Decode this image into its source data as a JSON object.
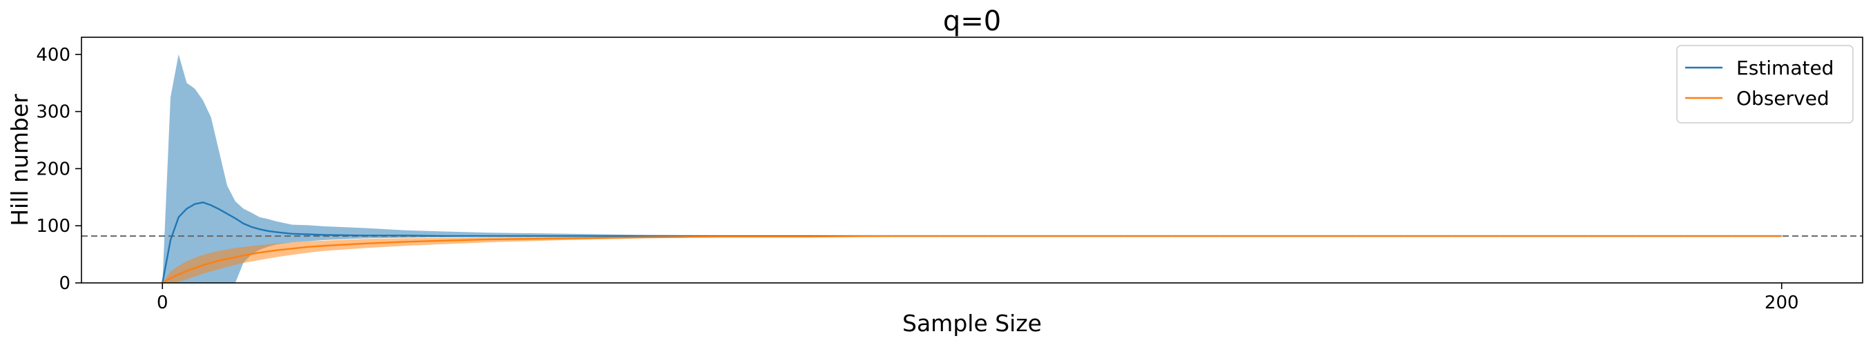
{
  "chart_data": {
    "type": "line",
    "title": "q=0",
    "xlabel": "Sample Size",
    "ylabel": "Hill number",
    "xlim": [
      -10,
      210
    ],
    "ylim": [
      0,
      430
    ],
    "xticks": [
      0,
      200
    ],
    "yticks": [
      0,
      100,
      200,
      300,
      400
    ],
    "grid": false,
    "legend": {
      "placement": "top-right"
    },
    "reference_line": {
      "y": 82,
      "style": "dashed",
      "color": "#666666"
    },
    "series": [
      {
        "name": "Estimated",
        "color": "#1f77b4",
        "band_color": "#1f77b4",
        "x": [
          0,
          1,
          2,
          3,
          4,
          5,
          6,
          7,
          8,
          9,
          10,
          11,
          12,
          13,
          14,
          16,
          18,
          20,
          25,
          30,
          35,
          40,
          50,
          60,
          70,
          80,
          100,
          150,
          200
        ],
        "y": [
          0,
          75,
          115,
          130,
          138,
          141,
          136,
          129,
          121,
          113,
          104,
          98,
          94,
          91,
          89,
          86,
          85,
          84,
          83,
          83,
          82,
          82,
          82,
          82,
          82,
          82,
          82,
          82,
          82
        ],
        "upper": [
          0,
          325,
          400,
          350,
          340,
          320,
          290,
          230,
          170,
          143,
          130,
          123,
          115,
          112,
          108,
          102,
          101,
          99,
          96,
          92,
          90,
          88,
          86,
          84,
          83,
          82,
          82,
          82,
          82
        ],
        "lower": [
          0,
          0,
          0,
          0,
          0,
          0,
          0,
          0,
          0,
          0,
          35,
          50,
          58,
          63,
          67,
          71,
          73,
          75,
          78,
          79,
          80,
          81,
          81,
          82,
          82,
          82,
          82,
          82,
          82
        ]
      },
      {
        "name": "Observed",
        "color": "#ff7f0e",
        "band_color": "#ff7f0e",
        "x": [
          0,
          1,
          2,
          3,
          4,
          5,
          6,
          7,
          8,
          10,
          12,
          14,
          16,
          18,
          20,
          25,
          30,
          35,
          40,
          50,
          60,
          70,
          80,
          90,
          100,
          150,
          200
        ],
        "y": [
          0,
          8,
          15,
          21,
          26,
          31,
          35,
          39,
          42,
          48,
          53,
          57,
          60,
          63,
          65,
          69,
          72,
          74,
          76,
          78,
          80,
          81,
          81,
          82,
          82,
          82,
          82
        ],
        "upper": [
          0,
          20,
          30,
          38,
          44,
          49,
          53,
          56,
          59,
          63,
          66,
          69,
          71,
          73,
          74,
          77,
          78,
          79,
          80,
          81,
          81,
          82,
          82,
          82,
          82,
          82,
          82
        ],
        "lower": [
          0,
          0,
          2,
          6,
          11,
          16,
          20,
          24,
          28,
          35,
          40,
          45,
          49,
          53,
          56,
          61,
          65,
          68,
          71,
          75,
          78,
          80,
          81,
          82,
          82,
          82,
          82
        ]
      }
    ]
  }
}
